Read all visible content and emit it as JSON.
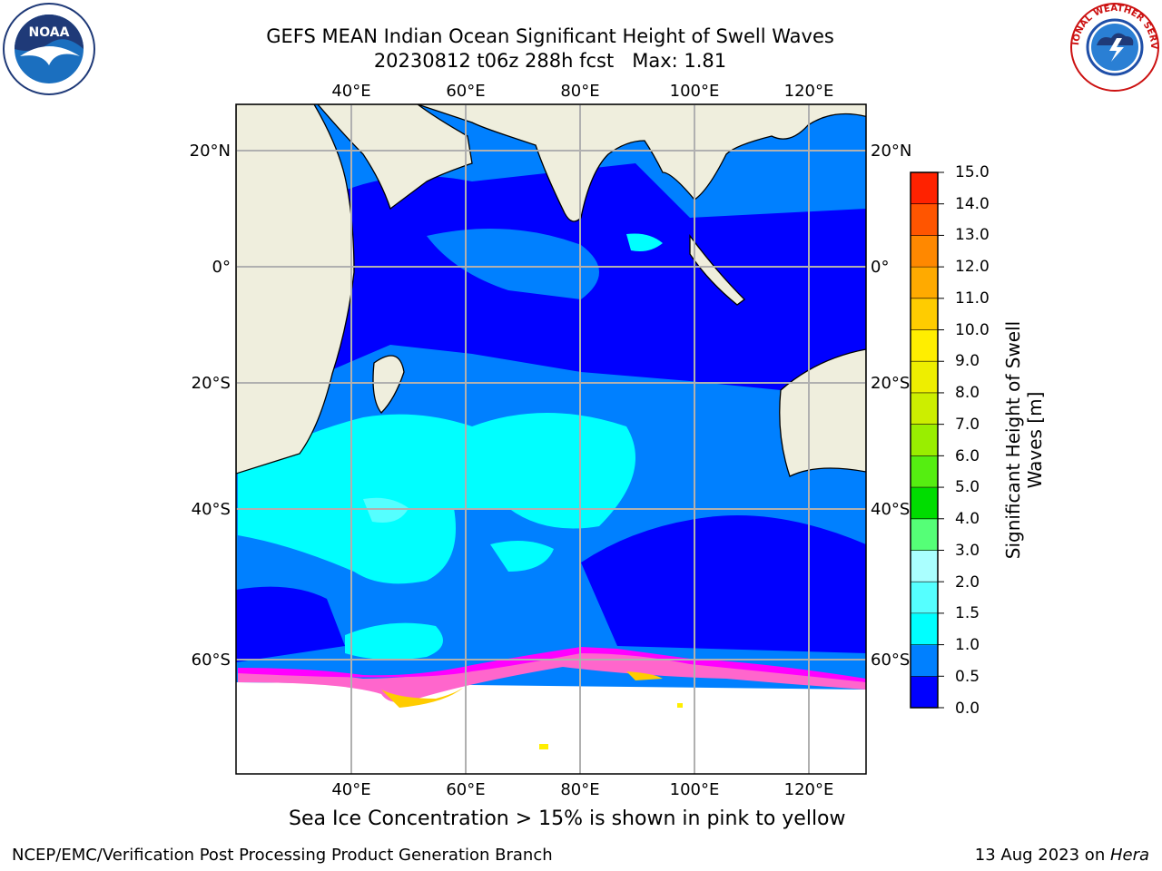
{
  "title_line1": "GEFS MEAN Indian Ocean Significant Height of Swell Waves",
  "title_line2": "20230812 t06z 288h fcst   Max: 1.81",
  "logos": {
    "left": "noaa-logo",
    "right": "nws-logo",
    "left_text": "NOAA",
    "right_text": "NATIONAL WEATHER SERVICE"
  },
  "map": {
    "lon_ticks": [
      "40°E",
      "60°E",
      "80°E",
      "100°E",
      "120°E"
    ],
    "lat_ticks_left": [
      "20°N",
      "0°",
      "20°S",
      "40°S",
      "60°S"
    ],
    "lat_ticks_right": [
      "20°N",
      "0°",
      "20°S",
      "40°S",
      "60°S"
    ],
    "land_color": "#efeedd",
    "ice_colors": [
      "#ff00ff",
      "#ff66cc",
      "#ffcc00",
      "#ffff66"
    ]
  },
  "colorbar": {
    "title_line1": "Significant Height of Swell",
    "title_line2": "Waves [m]",
    "labels": [
      "15.0",
      "14.0",
      "13.0",
      "12.0",
      "11.0",
      "10.0",
      "9.0",
      "8.0",
      "7.0",
      "6.0",
      "5.0",
      "4.0",
      "3.0",
      "2.0",
      "1.5",
      "1.0",
      "0.5",
      "0.0"
    ],
    "colors": [
      "#0000ff",
      "#0080ff",
      "#00ffff",
      "#55ffff",
      "#aaffff",
      "#55ff77",
      "#00dd00",
      "#55ee11",
      "#99ee00",
      "#ccee00",
      "#eeee00",
      "#ffee00",
      "#ffcc00",
      "#ffaa00",
      "#ff8800",
      "#ff5500",
      "#ff2200"
    ]
  },
  "ice_note": "Sea Ice Concentration > 15% is shown in pink to yellow",
  "footer_left": "NCEP/EMC/Verification Post Processing Product Generation Branch",
  "footer_date": "13 Aug 2023 on ",
  "footer_machine": "Hera"
}
